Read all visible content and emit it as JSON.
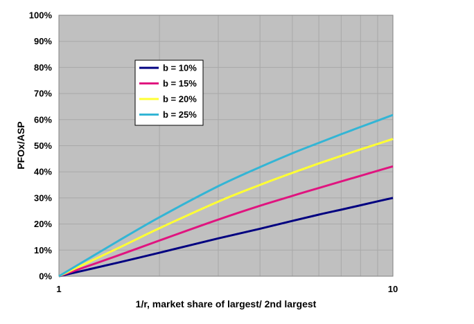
{
  "chart_data": {
    "type": "line",
    "title": "",
    "xlabel": "1/r, market share of largest/ 2nd largest",
    "ylabel": "PFOx/ASP",
    "x_scale": "log",
    "xlim": [
      1,
      10
    ],
    "ylim": [
      0,
      1
    ],
    "x_tick_labels": [
      "1",
      "10"
    ],
    "y_ticks": [
      0,
      0.1,
      0.2,
      0.3,
      0.4,
      0.5,
      0.6,
      0.7,
      0.8,
      0.9,
      1.0
    ],
    "y_tick_labels": [
      "0%",
      "10%",
      "20%",
      "30%",
      "40%",
      "50%",
      "60%",
      "70%",
      "80%",
      "90%",
      "100%"
    ],
    "grid": true,
    "legend_position": "upper-left inside plot",
    "background_color": "#c0c0c0",
    "grid_color": "#a8a8a8",
    "series": [
      {
        "name": "b = 10%",
        "color": "#000080",
        "x": [
          1,
          1.5,
          2,
          3,
          4,
          5,
          6,
          7,
          8,
          9,
          10
        ],
        "y": [
          0,
          0.052,
          0.09,
          0.145,
          0.182,
          0.212,
          0.236,
          0.255,
          0.272,
          0.287,
          0.3
        ]
      },
      {
        "name": "b = 15%",
        "color": "#e0147f",
        "x": [
          1,
          1.5,
          2,
          3,
          4,
          5,
          6,
          7,
          8,
          9,
          10
        ],
        "y": [
          0,
          0.079,
          0.137,
          0.217,
          0.27,
          0.308,
          0.338,
          0.363,
          0.385,
          0.404,
          0.421
        ]
      },
      {
        "name": "b = 20%",
        "color": "#ffff33",
        "x": [
          1,
          1.5,
          2,
          3,
          4,
          5,
          6,
          7,
          8,
          9,
          10
        ],
        "y": [
          0,
          0.107,
          0.184,
          0.286,
          0.35,
          0.396,
          0.432,
          0.461,
          0.486,
          0.507,
          0.526
        ]
      },
      {
        "name": "b = 25%",
        "color": "#33b5d5",
        "x": [
          1,
          1.5,
          2,
          3,
          4,
          5,
          6,
          7,
          8,
          9,
          10
        ],
        "y": [
          0,
          0.134,
          0.226,
          0.345,
          0.418,
          0.471,
          0.511,
          0.544,
          0.572,
          0.596,
          0.618
        ]
      }
    ]
  }
}
